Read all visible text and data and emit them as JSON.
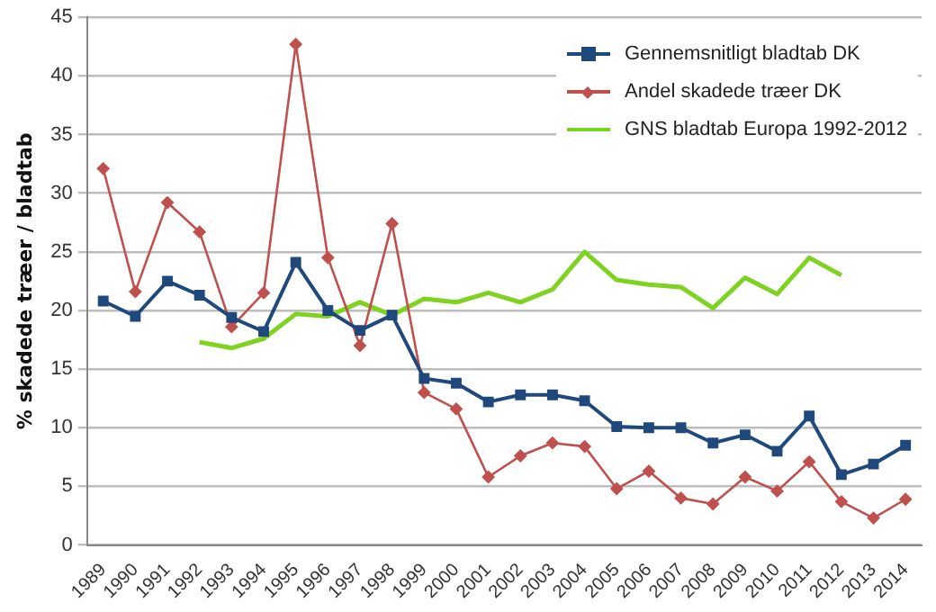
{
  "chart_data": {
    "type": "line",
    "ylabel": "% skadede træer / bladtab",
    "categories": [
      "1989",
      "1990",
      "1991",
      "1992",
      "1993",
      "1994",
      "1995",
      "1996",
      "1997",
      "1998",
      "1999",
      "2000",
      "2001",
      "2002",
      "2003",
      "2004",
      "2005",
      "2006",
      "2007",
      "2008",
      "2009",
      "2010",
      "2011",
      "2012",
      "2013",
      "2014"
    ],
    "ylim": [
      0,
      45
    ],
    "yticks": [
      0,
      5,
      10,
      15,
      20,
      25,
      30,
      35,
      40,
      45
    ],
    "grid": "y",
    "legend": "top right",
    "line_style": "solid",
    "series": [
      {
        "name": "Gennemsnitligt bladtab DK",
        "color": "#1f497d",
        "marker": "square",
        "values": [
          20.8,
          19.5,
          22.5,
          21.3,
          19.4,
          18.2,
          24.1,
          20.0,
          18.3,
          19.6,
          14.2,
          13.8,
          12.2,
          12.8,
          12.8,
          12.3,
          10.1,
          10.0,
          10.0,
          8.7,
          9.4,
          8.0,
          11.0,
          6.0,
          6.9,
          8.5
        ]
      },
      {
        "name": "Andel skadede træer DK",
        "color": "#c0504d",
        "marker": "diamond",
        "values": [
          32.1,
          21.6,
          29.2,
          26.7,
          18.6,
          21.5,
          42.7,
          24.5,
          17.0,
          27.4,
          13.0,
          11.6,
          5.8,
          7.6,
          8.7,
          8.4,
          4.8,
          6.3,
          4.0,
          3.5,
          5.8,
          4.6,
          7.1,
          3.7,
          2.3,
          3.9
        ]
      },
      {
        "name": "GNS bladtab Europa 1992-2012",
        "color": "#7ed321",
        "marker": "none",
        "values": [
          null,
          null,
          null,
          17.3,
          16.8,
          17.6,
          19.7,
          19.5,
          20.7,
          19.6,
          21.0,
          20.7,
          21.5,
          20.7,
          21.8,
          25.0,
          22.6,
          22.2,
          22.0,
          20.2,
          22.8,
          21.4,
          24.5,
          23.0,
          null,
          null
        ]
      }
    ]
  }
}
